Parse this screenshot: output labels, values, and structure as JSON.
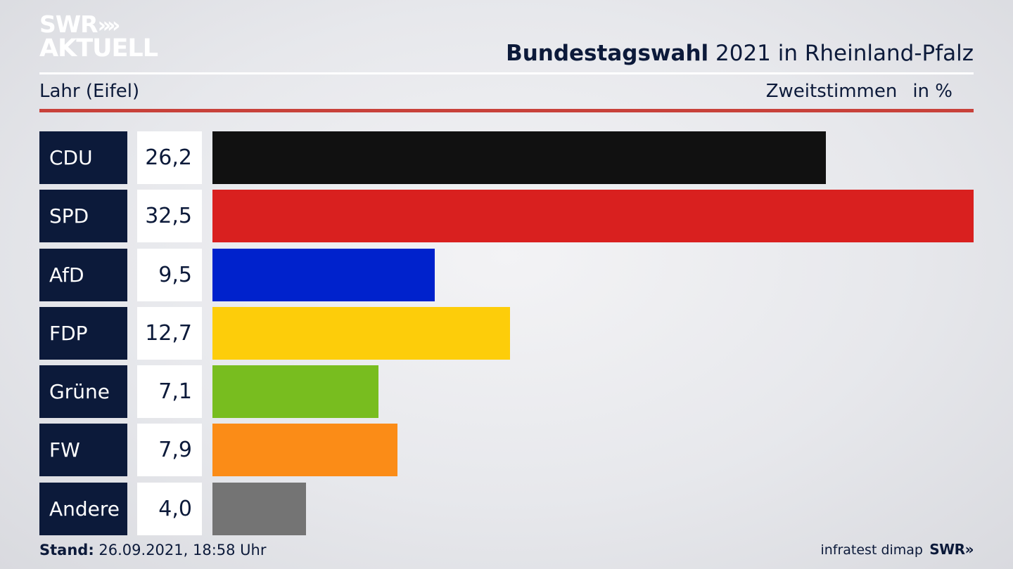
{
  "logo": {
    "line1": "SWR",
    "chevrons": "»",
    "line2": "AKTUELL"
  },
  "header": {
    "title_bold": "Bundestagswahl",
    "title_rest": " 2021 in Rheinland-Pfalz"
  },
  "region": "Lahr (Eifel)",
  "subheader": {
    "vote_type": "Zweitstimmen",
    "unit": "in %"
  },
  "chart_data": {
    "type": "bar",
    "orientation": "horizontal",
    "categories": [
      "CDU",
      "SPD",
      "AfD",
      "FDP",
      "Grüne",
      "FW",
      "Andere"
    ],
    "values": [
      26.2,
      32.5,
      9.5,
      12.7,
      7.1,
      7.9,
      4.0
    ],
    "value_labels": [
      "26,2",
      "32,5",
      "9,5",
      "12,7",
      "7,1",
      "7,9",
      "4,0"
    ],
    "colors": [
      "#111111",
      "#d9201f",
      "#0022cc",
      "#fdcd0a",
      "#78bd1f",
      "#fb8c17",
      "#747474"
    ],
    "xlim": [
      0,
      32.5
    ],
    "unit": "in %",
    "grid": false
  },
  "footer": {
    "stand_label": "Stand:",
    "stand_value": " 26.09.2021, 18:58 Uhr",
    "source": "infratest dimap",
    "brand": "SWR»"
  },
  "colors": {
    "navy": "#0c1a3a",
    "accent_red": "#c8413a"
  }
}
